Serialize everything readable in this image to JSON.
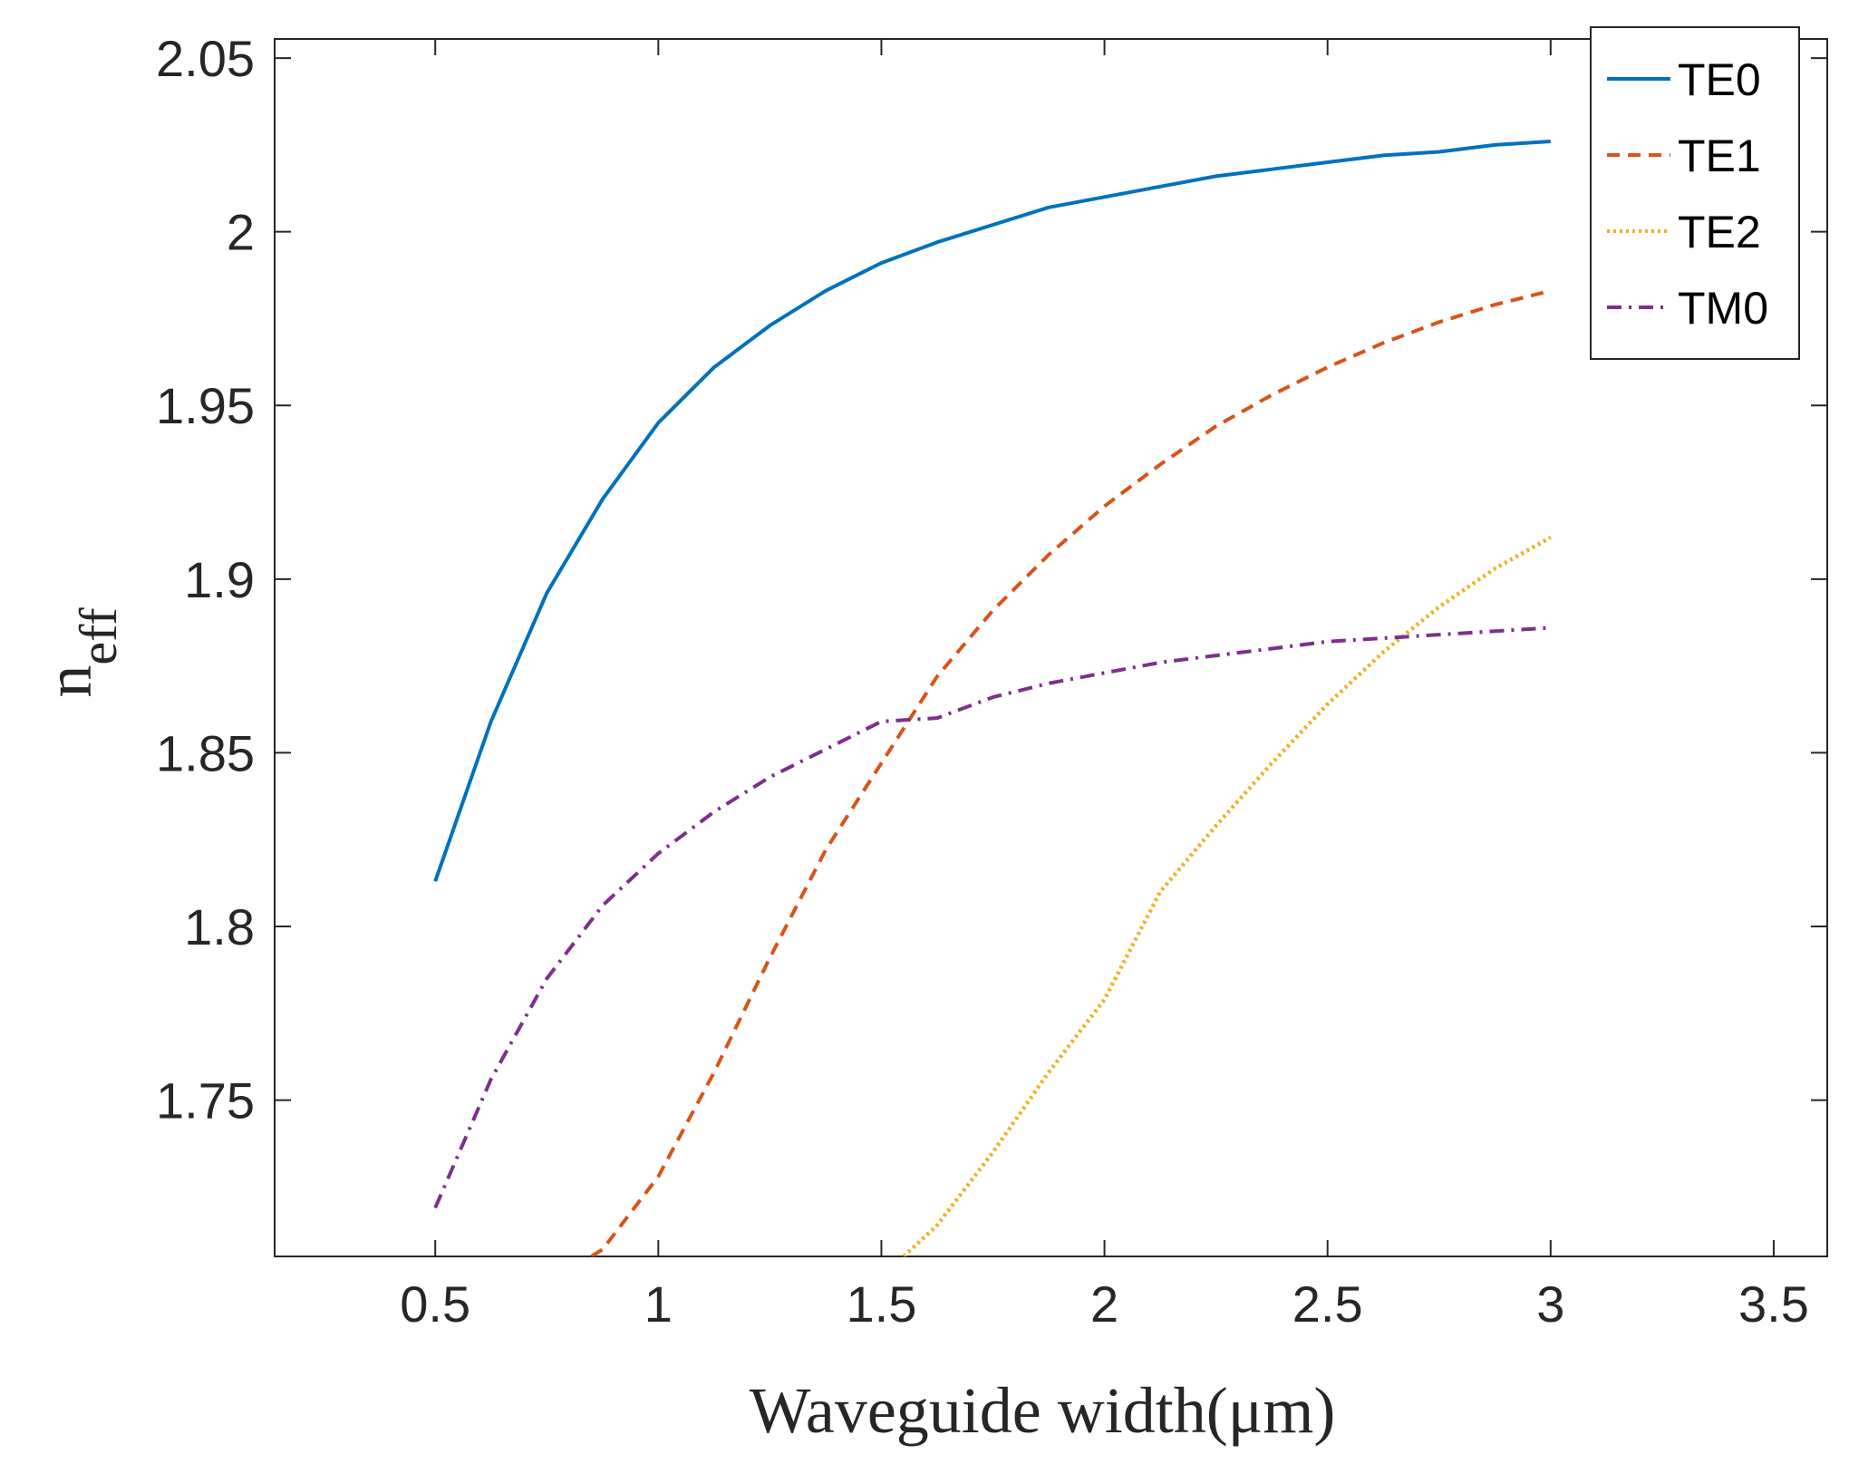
{
  "chart_data": {
    "type": "line",
    "title": "",
    "xlabel": "Waveguide width(μm)",
    "ylabel": {
      "base": "n",
      "subscript": "eff"
    },
    "xlim": [
      0.14,
      3.62
    ],
    "ylim": [
      1.705,
      2.0555
    ],
    "xticks": [
      0.5,
      1,
      1.5,
      2,
      2.5,
      3,
      3.5
    ],
    "xtick_labels": [
      "0.5",
      "1",
      "1.5",
      "2",
      "2.5",
      "3",
      "3.5"
    ],
    "yticks": [
      1.75,
      1.8,
      1.85,
      1.9,
      1.95,
      2.0,
      2.05
    ],
    "ytick_labels": [
      "1.75",
      "1.8",
      "1.85",
      "1.9",
      "1.95",
      "2",
      "2.05"
    ],
    "grid": false,
    "legend_position": "top-right",
    "series": [
      {
        "name": "TE0",
        "color": "#0072BD",
        "style": "solid",
        "x": [
          0.5,
          0.625,
          0.75,
          0.875,
          1.0,
          1.125,
          1.25,
          1.375,
          1.5,
          1.625,
          1.75,
          1.875,
          2.0,
          2.125,
          2.25,
          2.375,
          2.5,
          2.625,
          2.75,
          2.875,
          3.0
        ],
        "y": [
          1.813,
          1.859,
          1.896,
          1.923,
          1.945,
          1.961,
          1.973,
          1.983,
          1.991,
          1.997,
          2.002,
          2.007,
          2.01,
          2.013,
          2.016,
          2.018,
          2.02,
          2.022,
          2.023,
          2.025,
          2.026
        ]
      },
      {
        "name": "TE1",
        "color": "#D95319",
        "style": "dashed",
        "x": [
          0.85,
          0.875,
          1.0,
          1.125,
          1.25,
          1.375,
          1.5,
          1.625,
          1.75,
          1.875,
          2.0,
          2.125,
          2.25,
          2.375,
          2.5,
          2.625,
          2.75,
          2.875,
          3.0
        ],
        "y": [
          1.705,
          1.707,
          1.728,
          1.758,
          1.791,
          1.822,
          1.847,
          1.872,
          1.891,
          1.907,
          1.921,
          1.933,
          1.944,
          1.953,
          1.961,
          1.968,
          1.974,
          1.979,
          1.983
        ]
      },
      {
        "name": "TE2",
        "color": "#EDB120",
        "style": "dotted",
        "x": [
          1.55,
          1.625,
          1.75,
          1.875,
          2.0,
          2.125,
          2.25,
          2.375,
          2.5,
          2.625,
          2.75,
          2.875,
          3.0
        ],
        "y": [
          1.705,
          1.714,
          1.735,
          1.758,
          1.779,
          1.81,
          1.829,
          1.847,
          1.864,
          1.879,
          1.892,
          1.903,
          1.912
        ]
      },
      {
        "name": "TM0",
        "color": "#7E2F8E",
        "style": "dashdot",
        "x": [
          0.5,
          0.625,
          0.75,
          0.875,
          1.0,
          1.125,
          1.25,
          1.375,
          1.5,
          1.625,
          1.75,
          1.875,
          2.0,
          2.125,
          2.25,
          2.375,
          2.5,
          2.625,
          2.75,
          2.875,
          3.0
        ],
        "y": [
          1.719,
          1.756,
          1.785,
          1.806,
          1.821,
          1.833,
          1.843,
          1.851,
          1.859,
          1.86,
          1.866,
          1.87,
          1.873,
          1.876,
          1.878,
          1.88,
          1.882,
          1.883,
          1.884,
          1.885,
          1.886
        ]
      }
    ]
  }
}
